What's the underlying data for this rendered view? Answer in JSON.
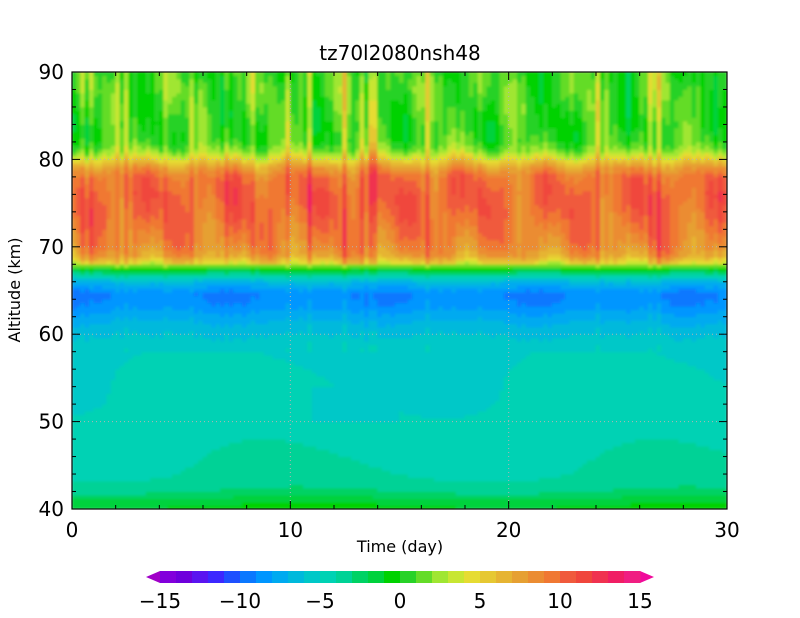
{
  "chart_data": {
    "type": "heatmap",
    "title": "tz70l2080nsh48",
    "xlabel": "Time (day)",
    "ylabel": "Altitude (km)",
    "xlim": [
      0,
      30
    ],
    "ylim": [
      40,
      90
    ],
    "xticks": [
      0,
      10,
      20,
      30
    ],
    "yticks": [
      40,
      50,
      60,
      70,
      80,
      90
    ],
    "x_tick_labels": [
      "0",
      "10",
      "20",
      "30"
    ],
    "y_tick_labels": [
      "40",
      "50",
      "60",
      "70",
      "80",
      "90"
    ],
    "grid": "dotted",
    "colorbar": {
      "min": -15,
      "max": 15,
      "step": 1,
      "tick_values": [
        -15,
        -10,
        -5,
        0,
        5,
        10,
        15
      ],
      "tick_labels": [
        "−15",
        "−10",
        "−5",
        "0",
        "5",
        "10",
        "15"
      ],
      "extend": "both",
      "colors": [
        "#a000c8",
        "#8200dc",
        "#6e00dc",
        "#5a14f0",
        "#3c28ff",
        "#1e50ff",
        "#0a78ff",
        "#0096ff",
        "#00aaf0",
        "#00b9dc",
        "#00c8c8",
        "#00d2b4",
        "#00d296",
        "#00d264",
        "#00d23c",
        "#00d200",
        "#28d228",
        "#64dc28",
        "#a0e632",
        "#c8e632",
        "#e6dc32",
        "#e6c832",
        "#e6b432",
        "#e6a032",
        "#eb8c32",
        "#f07832",
        "#f05a3c",
        "#f0463c",
        "#f03250",
        "#f01e64",
        "#f01e82",
        "#f00a9b"
      ]
    },
    "altitude_profile": [
      [
        40,
        -0.5
      ],
      [
        41,
        -1.5
      ],
      [
        42,
        -2.8
      ],
      [
        43,
        -3.4
      ],
      [
        44,
        -3.7
      ],
      [
        46,
        -3.9
      ],
      [
        48,
        -4.1
      ],
      [
        50,
        -4.3
      ],
      [
        52,
        -4.5
      ],
      [
        54,
        -4.6
      ],
      [
        56,
        -4.7
      ],
      [
        58,
        -4.9
      ],
      [
        60,
        -5.6
      ],
      [
        62,
        -6.8
      ],
      [
        63,
        -7.6
      ],
      [
        64.5,
        -8.3
      ],
      [
        66,
        -6.2
      ],
      [
        67,
        -2.5
      ],
      [
        67.6,
        0.2
      ],
      [
        68.2,
        4.5
      ],
      [
        69,
        7.0
      ],
      [
        70,
        8.0
      ],
      [
        72,
        8.7
      ],
      [
        74,
        9.3
      ],
      [
        76,
        9.5
      ],
      [
        78,
        9.0
      ],
      [
        79.2,
        7.0
      ],
      [
        80,
        4.5
      ],
      [
        81,
        2.0
      ],
      [
        82,
        0.8
      ],
      [
        84,
        0.5
      ],
      [
        86,
        0.8
      ],
      [
        88,
        1.0
      ],
      [
        90,
        0.6
      ]
    ]
  }
}
